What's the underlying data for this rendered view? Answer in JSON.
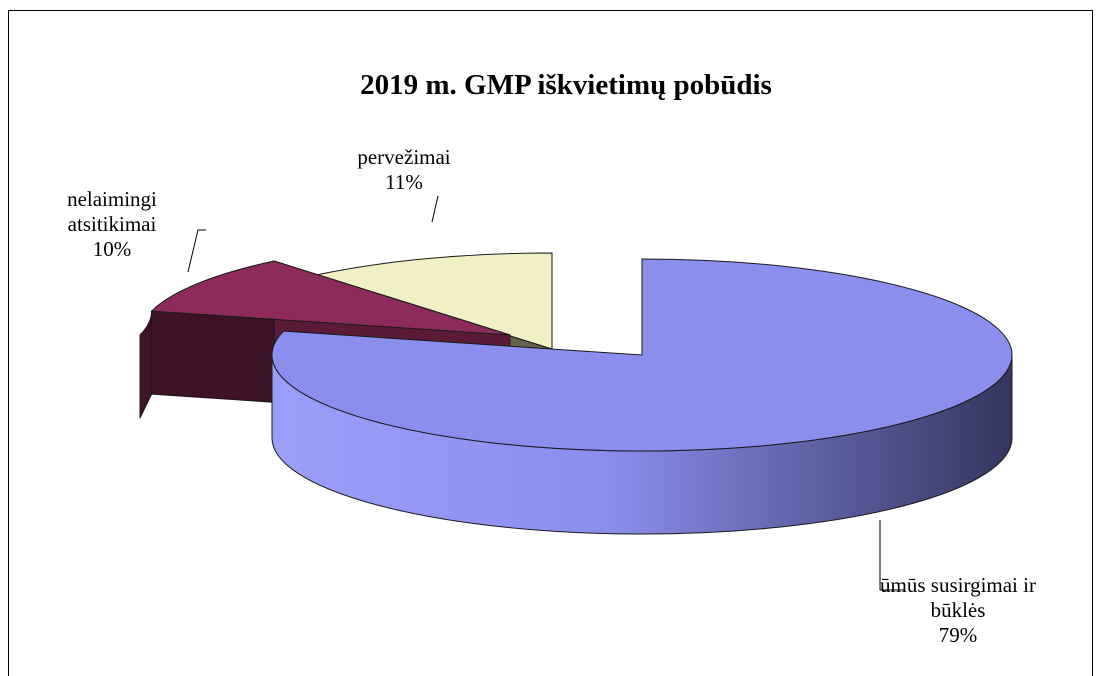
{
  "chart_data": {
    "type": "pie",
    "title": "2019 m. GMP iškvietimų pobūdis",
    "slices": [
      {
        "label_lines": [
          "ūmūs  susirgimai ir",
          "būklės"
        ],
        "value": 79,
        "value_label": "79%",
        "color": "#8a8fee",
        "side_dark": "#34365e",
        "exploded": false
      },
      {
        "label_lines": [
          "nelaimingi",
          "atsitikimai"
        ],
        "value": 10,
        "value_label": "10%",
        "color": "#8c2a5c",
        "side_dark": "#3d1226",
        "exploded": true
      },
      {
        "label_lines": [
          "pervežimai"
        ],
        "value": 11,
        "value_label": "11%",
        "color": "#f0f0c4",
        "side_dark": "#656448",
        "exploded": true
      }
    ],
    "legend": "none",
    "style": "3d-exploded"
  }
}
